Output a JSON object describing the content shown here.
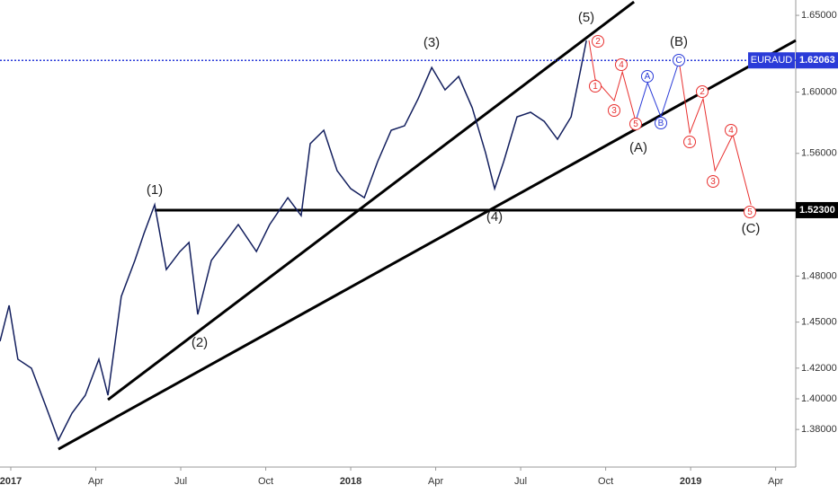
{
  "chart_data": {
    "type": "line",
    "x": [
      -0.38,
      -0.06,
      0.25,
      0.73,
      1.21,
      1.68,
      2.16,
      2.63,
      3.11,
      3.43,
      3.9,
      4.38,
      4.7,
      5.08,
      5.49,
      5.97,
      6.29,
      6.6,
      7.08,
      7.56,
      8.03,
      8.67,
      9.14,
      9.78,
      10.25,
      10.57,
      11.05,
      11.52,
      12,
      12.48,
      12.95,
      13.43,
      13.9,
      14.38,
      14.86,
      15.33,
      15.81,
      16.29,
      16.76,
      17.08,
      17.4,
      17.87,
      18.35,
      18.83,
      19.3,
      19.78,
      20.1,
      20.32
    ],
    "series": [
      {
        "name": "EURAUD",
        "color": "#131f5e",
        "values": [
          1.4375,
          1.4609,
          1.4258,
          1.4199,
          1.3965,
          1.3731,
          1.3906,
          1.4023,
          1.4258,
          1.4023,
          1.4667,
          1.4902,
          1.5077,
          1.5265,
          1.4843,
          1.496,
          1.5019,
          1.455,
          1.4902,
          1.5019,
          1.5136,
          1.496,
          1.5136,
          1.5311,
          1.5194,
          1.5663,
          1.5751,
          1.5487,
          1.537,
          1.5311,
          1.5546,
          1.5751,
          1.578,
          1.5956,
          1.616,
          1.6014,
          1.6102,
          1.5897,
          1.5604,
          1.537,
          1.5546,
          1.5838,
          1.5868,
          1.5809,
          1.5692,
          1.5838,
          1.6131,
          1.6336
        ]
      }
    ],
    "projections": [
      {
        "color": "#e8302f",
        "x": [
          20.41,
          20.63,
          21.3,
          21.59,
          22.06
        ],
        "y": [
          1.6336,
          1.6084,
          1.5944,
          1.6131,
          1.5809
        ]
      },
      {
        "color": "#2a3bd8",
        "x": [
          22.06,
          22.48,
          22.95,
          23.59
        ],
        "y": [
          1.5809,
          1.6061,
          1.5838,
          1.6201
        ]
      },
      {
        "color": "#e8302f",
        "x": [
          23.59,
          23.97,
          24.44,
          24.86,
          25.49,
          26.13
        ],
        "y": [
          1.6201,
          1.5733,
          1.5956,
          1.5487,
          1.5721,
          1.5265
        ]
      }
    ],
    "trendlines": [
      {
        "x": [
          3.43,
          22.0
        ],
        "y": [
          1.3994,
          1.6588
        ]
      },
      {
        "x": [
          1.68,
          27.71
        ],
        "y": [
          1.3672,
          1.6336
        ]
      },
      {
        "x": [
          5.08,
          27.71
        ],
        "y": [
          1.523,
          1.523
        ]
      }
    ],
    "levels": [
      {
        "value": 1.523,
        "label": "1.52300"
      }
    ],
    "last_price": {
      "symbol": "EURAUD",
      "value": 1.62063,
      "label": "1.62063",
      "color": "#2a3bd8"
    },
    "wave_labels": [
      "(1)",
      "(2)",
      "(3)",
      "(4)",
      "(5)",
      "(A)",
      "(B)",
      "(C)"
    ],
    "circle_labels": [
      {
        "text": "2",
        "color": "#e8302f"
      },
      {
        "text": "1",
        "color": "#e8302f"
      },
      {
        "text": "4",
        "color": "#e8302f"
      },
      {
        "text": "3",
        "color": "#e8302f"
      },
      {
        "text": "5",
        "color": "#e8302f"
      },
      {
        "text": "A",
        "color": "#2a3bd8"
      },
      {
        "text": "B",
        "color": "#2a3bd8"
      },
      {
        "text": "C",
        "color": "#2a3bd8"
      },
      {
        "text": "1",
        "color": "#e8302f"
      },
      {
        "text": "2",
        "color": "#e8302f"
      },
      {
        "text": "3",
        "color": "#e8302f"
      },
      {
        "text": "4",
        "color": "#e8302f"
      },
      {
        "text": "5",
        "color": "#e8302f"
      }
    ],
    "xlim": [
      -0.381,
      27.71
    ],
    "ylim": [
      1.3555,
      1.66
    ],
    "xticks": [
      {
        "value": 0,
        "label": "2017"
      },
      {
        "value": 3,
        "label": "Apr"
      },
      {
        "value": 6,
        "label": "Jul"
      },
      {
        "value": 9,
        "label": "Oct"
      },
      {
        "value": 12,
        "label": "2018"
      },
      {
        "value": 15,
        "label": "Apr"
      },
      {
        "value": 18,
        "label": "Jul"
      },
      {
        "value": 21,
        "label": "Oct"
      },
      {
        "value": 24,
        "label": "2019"
      },
      {
        "value": 27,
        "label": "Apr"
      }
    ],
    "yticks": [
      {
        "value": 1.65,
        "label": "1.65000"
      },
      {
        "value": 1.6,
        "label": "1.60000"
      },
      {
        "value": 1.56,
        "label": "1.56000"
      },
      {
        "value": 1.48,
        "label": "1.48000"
      },
      {
        "value": 1.45,
        "label": "1.45000"
      },
      {
        "value": 1.42,
        "label": "1.42000"
      },
      {
        "value": 1.4,
        "label": "1.40000"
      },
      {
        "value": 1.38,
        "label": "1.38000"
      }
    ],
    "grid": false
  }
}
